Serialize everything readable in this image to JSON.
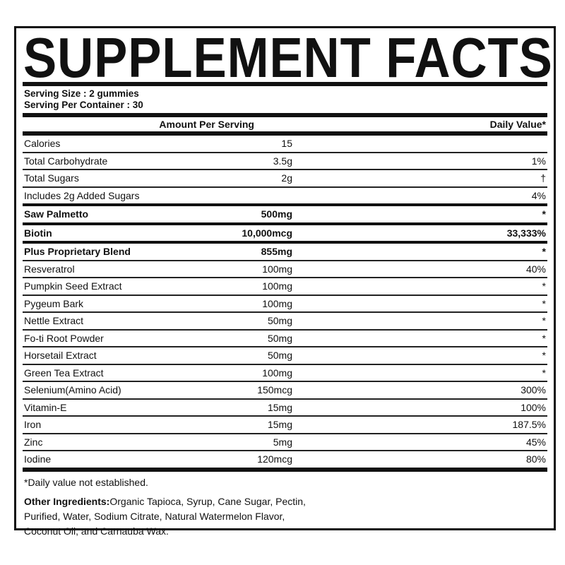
{
  "title": "SUPPLEMENT FACTS",
  "serving_size": "Serving Size : 2 gummies",
  "servings_per_container": "Serving Per Container : 30",
  "header": {
    "amount": "Amount Per Serving",
    "daily_value": "Daily Value*"
  },
  "rows": [
    {
      "name": "Calories",
      "amount": "15",
      "dv": ""
    },
    {
      "name": "Total Carbohydrate",
      "amount": "3.5g",
      "dv": "1%"
    },
    {
      "name": "Total Sugars",
      "amount": "2g",
      "dv": "†"
    },
    {
      "name": "Includes 2g Added Sugars",
      "amount": "",
      "dv": "4%"
    },
    {
      "name": "Saw Palmetto",
      "amount": "500mg",
      "dv": "*"
    },
    {
      "name": "Biotin",
      "amount": "10,000mcg",
      "dv": "33,333%"
    },
    {
      "name": "Plus Proprietary Blend",
      "amount": "855mg",
      "dv": "*"
    },
    {
      "name": "Resveratrol",
      "amount": "100mg",
      "dv": "40%"
    },
    {
      "name": "Pumpkin Seed Extract",
      "amount": "100mg",
      "dv": "*"
    },
    {
      "name": "Pygeum Bark",
      "amount": "100mg",
      "dv": "*"
    },
    {
      "name": "Nettle Extract",
      "amount": "50mg",
      "dv": "*"
    },
    {
      "name": "Fo-ti Root Powder",
      "amount": "50mg",
      "dv": "*"
    },
    {
      "name": "Horsetail Extract",
      "amount": "50mg",
      "dv": "*"
    },
    {
      "name": "Green Tea Extract",
      "amount": "100mg",
      "dv": "*"
    },
    {
      "name": "Selenium(Amino Acid)",
      "amount": "150mcg",
      "dv": "300%"
    },
    {
      "name": "Vitamin-E",
      "amount": "15mg",
      "dv": "100%"
    },
    {
      "name": "Iron",
      "amount": "15mg",
      "dv": "187.5%"
    },
    {
      "name": "Zinc",
      "amount": "5mg",
      "dv": "45%"
    },
    {
      "name": "Iodine",
      "amount": "120mcg",
      "dv": "80%"
    }
  ],
  "footnote": "*Daily value not established.",
  "other_ingredients": {
    "label": "Other Ingredients:",
    "text": "Organic Tapioca, Syrup, Cane Sugar, Pectin,",
    "line2": "Purified, Water, Sodium Citrate, Natural Watermelon Flavor,",
    "line3": "Coconut Oil, and Carnauba Wax."
  }
}
